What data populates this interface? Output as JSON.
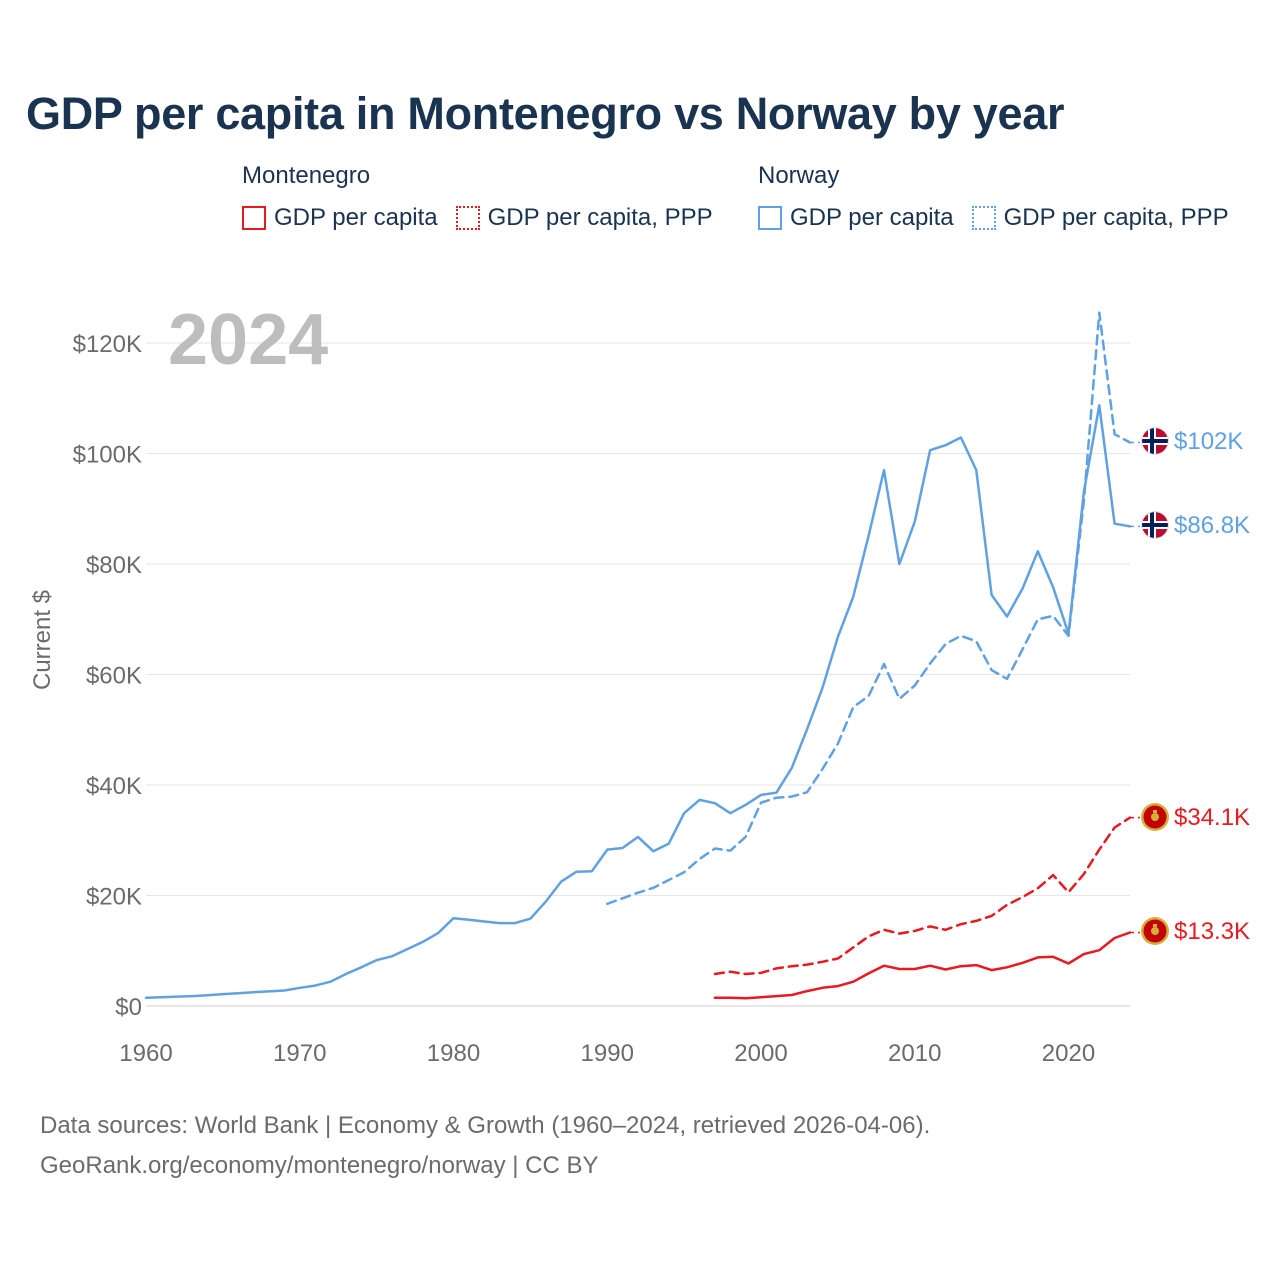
{
  "title": "GDP per capita in Montenegro vs Norway by year",
  "year_watermark": "2024",
  "legend": [
    {
      "country": "Montenegro",
      "color": "#e8191f",
      "items": [
        {
          "label": "GDP per capita",
          "style": "solid"
        },
        {
          "label": "GDP per capita, PPP",
          "style": "dotted"
        }
      ]
    },
    {
      "country": "Norway",
      "color": "#5fa1e2",
      "items": [
        {
          "label": "GDP per capita",
          "style": "solid"
        },
        {
          "label": "GDP per capita, PPP",
          "style": "dotted"
        }
      ]
    }
  ],
  "footer": {
    "line1": "Data sources: World Bank | Economy & Growth (1960–2024, retrieved 2026-04-06).",
    "line2": "GeoRank.org/economy/montenegro/norway | CC BY"
  },
  "chart_data": {
    "type": "line",
    "title": "GDP per capita in Montenegro vs Norway by year",
    "ylabel": "Current $",
    "xlabel": "",
    "xlim": [
      1960,
      2024
    ],
    "ylim": [
      0,
      120000
    ],
    "x_ticks": [
      1960,
      1970,
      1980,
      1990,
      2000,
      2010,
      2020
    ],
    "x_tick_labels": [
      "1960",
      "1970",
      "1980",
      "1990",
      "2000",
      "2010",
      "2020"
    ],
    "y_ticks": [
      0,
      20000,
      40000,
      60000,
      80000,
      100000,
      120000
    ],
    "y_tick_labels": [
      "$0",
      "$20K",
      "$40K",
      "$60K",
      "$80K",
      "$100K",
      "$120K"
    ],
    "grid": true,
    "series": [
      {
        "name": "Norway GDP per capita",
        "color": "#5fa1e2",
        "dash": "solid",
        "end_label": "$86.8K",
        "flag": "norway",
        "points": [
          [
            1960,
            1500
          ],
          [
            1961,
            1600
          ],
          [
            1962,
            1700
          ],
          [
            1963,
            1800
          ],
          [
            1964,
            1950
          ],
          [
            1965,
            2150
          ],
          [
            1966,
            2300
          ],
          [
            1967,
            2500
          ],
          [
            1968,
            2650
          ],
          [
            1969,
            2800
          ],
          [
            1970,
            3300
          ],
          [
            1971,
            3700
          ],
          [
            1972,
            4400
          ],
          [
            1973,
            5800
          ],
          [
            1974,
            7000
          ],
          [
            1975,
            8300
          ],
          [
            1976,
            9000
          ],
          [
            1977,
            10300
          ],
          [
            1978,
            11600
          ],
          [
            1979,
            13200
          ],
          [
            1980,
            15900
          ],
          [
            1981,
            15600
          ],
          [
            1982,
            15300
          ],
          [
            1983,
            15000
          ],
          [
            1984,
            15000
          ],
          [
            1985,
            15800
          ],
          [
            1986,
            18900
          ],
          [
            1987,
            22500
          ],
          [
            1988,
            24300
          ],
          [
            1989,
            24400
          ],
          [
            1990,
            28300
          ],
          [
            1991,
            28600
          ],
          [
            1992,
            30600
          ],
          [
            1993,
            28000
          ],
          [
            1994,
            29400
          ],
          [
            1995,
            34900
          ],
          [
            1996,
            37300
          ],
          [
            1997,
            36700
          ],
          [
            1998,
            34900
          ],
          [
            1999,
            36400
          ],
          [
            2000,
            38200
          ],
          [
            2001,
            38600
          ],
          [
            2002,
            43100
          ],
          [
            2003,
            50100
          ],
          [
            2004,
            57600
          ],
          [
            2005,
            66800
          ],
          [
            2006,
            74100
          ],
          [
            2007,
            85100
          ],
          [
            2008,
            97000
          ],
          [
            2009,
            80000
          ],
          [
            2010,
            87700
          ],
          [
            2011,
            100600
          ],
          [
            2012,
            101500
          ],
          [
            2013,
            102900
          ],
          [
            2014,
            97000
          ],
          [
            2015,
            74400
          ],
          [
            2016,
            70500
          ],
          [
            2017,
            75500
          ],
          [
            2018,
            82300
          ],
          [
            2019,
            75800
          ],
          [
            2020,
            67400
          ],
          [
            2021,
            93100
          ],
          [
            2022,
            108700
          ],
          [
            2023,
            87300
          ],
          [
            2024,
            86800
          ]
        ]
      },
      {
        "name": "Norway GDP per capita, PPP",
        "color": "#5fa1e2",
        "dash": "dashed",
        "end_label": "$102K",
        "flag": "norway",
        "points": [
          [
            1990,
            18500
          ],
          [
            1991,
            19500
          ],
          [
            1992,
            20500
          ],
          [
            1993,
            21400
          ],
          [
            1994,
            22800
          ],
          [
            1995,
            24200
          ],
          [
            1996,
            26600
          ],
          [
            1997,
            28500
          ],
          [
            1998,
            28100
          ],
          [
            1999,
            30600
          ],
          [
            2000,
            36800
          ],
          [
            2001,
            37700
          ],
          [
            2002,
            37900
          ],
          [
            2003,
            38700
          ],
          [
            2004,
            42900
          ],
          [
            2005,
            47500
          ],
          [
            2006,
            54100
          ],
          [
            2007,
            56100
          ],
          [
            2008,
            61900
          ],
          [
            2009,
            55600
          ],
          [
            2010,
            58000
          ],
          [
            2011,
            62000
          ],
          [
            2012,
            65500
          ],
          [
            2013,
            67000
          ],
          [
            2014,
            66000
          ],
          [
            2015,
            60800
          ],
          [
            2016,
            59200
          ],
          [
            2017,
            64500
          ],
          [
            2018,
            70000
          ],
          [
            2019,
            70600
          ],
          [
            2020,
            67000
          ],
          [
            2021,
            91500
          ],
          [
            2022,
            125500
          ],
          [
            2023,
            103500
          ],
          [
            2024,
            102000
          ]
        ]
      },
      {
        "name": "Montenegro GDP per capita",
        "color": "#e8191f",
        "dash": "solid",
        "end_label": "$13.3K",
        "flag": "montenegro",
        "points": [
          [
            1997,
            1500
          ],
          [
            1998,
            1500
          ],
          [
            1999,
            1400
          ],
          [
            2000,
            1600
          ],
          [
            2001,
            1800
          ],
          [
            2002,
            2000
          ],
          [
            2003,
            2700
          ],
          [
            2004,
            3300
          ],
          [
            2005,
            3600
          ],
          [
            2006,
            4400
          ],
          [
            2007,
            5900
          ],
          [
            2008,
            7300
          ],
          [
            2009,
            6700
          ],
          [
            2010,
            6700
          ],
          [
            2011,
            7300
          ],
          [
            2012,
            6600
          ],
          [
            2013,
            7200
          ],
          [
            2014,
            7400
          ],
          [
            2015,
            6500
          ],
          [
            2016,
            7000
          ],
          [
            2017,
            7800
          ],
          [
            2018,
            8800
          ],
          [
            2019,
            8900
          ],
          [
            2020,
            7700
          ],
          [
            2021,
            9400
          ],
          [
            2022,
            10100
          ],
          [
            2023,
            12300
          ],
          [
            2024,
            13300
          ]
        ]
      },
      {
        "name": "Montenegro GDP per capita, PPP",
        "color": "#e8191f",
        "dash": "dashed",
        "end_label": "$34.1K",
        "flag": "montenegro",
        "points": [
          [
            1997,
            5800
          ],
          [
            1998,
            6200
          ],
          [
            1999,
            5800
          ],
          [
            2000,
            6000
          ],
          [
            2001,
            6800
          ],
          [
            2002,
            7200
          ],
          [
            2003,
            7500
          ],
          [
            2004,
            8000
          ],
          [
            2005,
            8600
          ],
          [
            2006,
            10600
          ],
          [
            2007,
            12600
          ],
          [
            2008,
            13800
          ],
          [
            2009,
            13100
          ],
          [
            2010,
            13600
          ],
          [
            2011,
            14400
          ],
          [
            2012,
            13800
          ],
          [
            2013,
            14800
          ],
          [
            2014,
            15400
          ],
          [
            2015,
            16300
          ],
          [
            2016,
            18300
          ],
          [
            2017,
            19700
          ],
          [
            2018,
            21300
          ],
          [
            2019,
            23700
          ],
          [
            2020,
            20600
          ],
          [
            2021,
            23900
          ],
          [
            2022,
            28300
          ],
          [
            2023,
            32300
          ],
          [
            2024,
            34100
          ]
        ]
      }
    ]
  }
}
